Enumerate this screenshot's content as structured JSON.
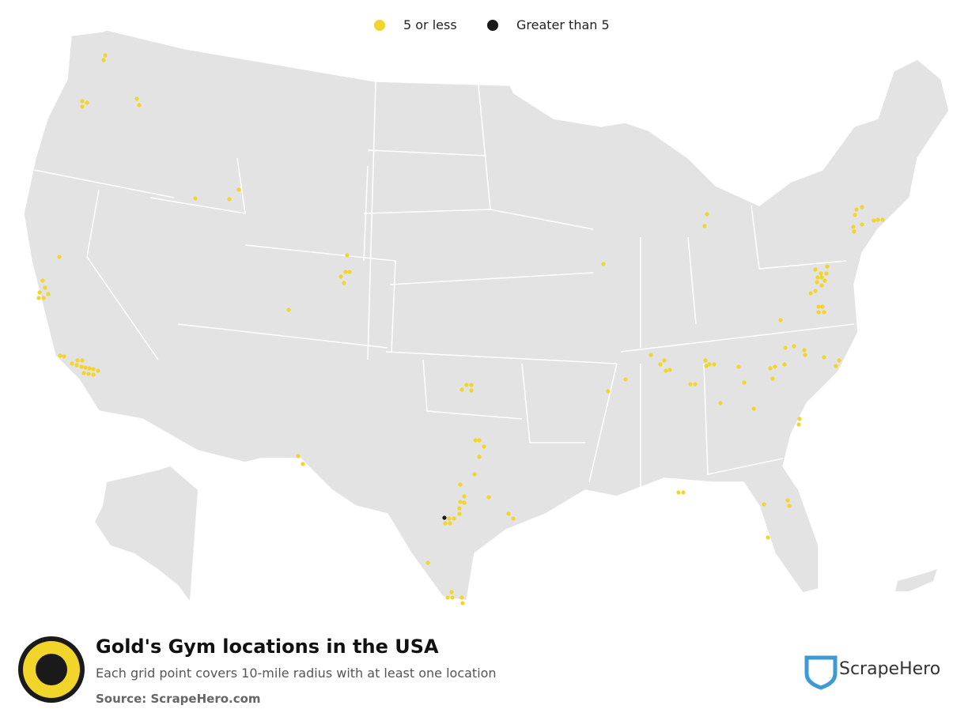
{
  "legend": [
    {
      "label": "5 or less",
      "color": "#f2d52b"
    },
    {
      "label": "Greater than 5",
      "color": "#1a1a1a"
    }
  ],
  "title": "Gold's Gym locations in the USA",
  "subtitle": "Each grid point covers 10-mile radius with at least one location",
  "source": "Source: ScrapeHero.com",
  "brand": "ScrapeHero"
}
